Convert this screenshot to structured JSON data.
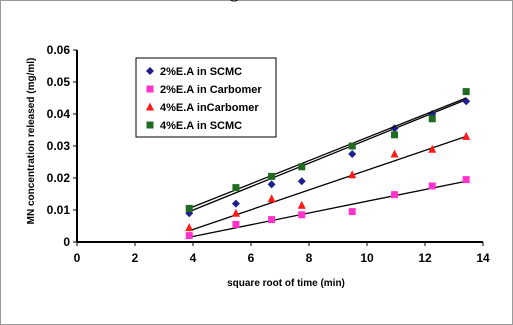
{
  "chart_data": {
    "type": "scatter",
    "title": "g",
    "xlabel": "square root of time (min)",
    "ylabel": "MN concentration released (mg/ml)",
    "xlim": [
      0,
      14
    ],
    "ylim": [
      0,
      0.06
    ],
    "xticks": [
      "0",
      "2",
      "4",
      "6",
      "8",
      "10",
      "12",
      "14"
    ],
    "yticks": [
      "0",
      "0.01",
      "0.02",
      "0.03",
      "0.04",
      "0.05",
      "0.06"
    ],
    "grid": false,
    "legend_position": "top-left",
    "series": [
      {
        "name": "2%E.A in SCMC",
        "marker": "diamond",
        "color": "#1f1f8f",
        "x": [
          3.87,
          5.48,
          6.71,
          7.75,
          9.49,
          10.95,
          12.25,
          13.42
        ],
        "y": [
          0.009,
          0.012,
          0.018,
          0.019,
          0.0275,
          0.0355,
          0.04,
          0.044
        ],
        "trendline": [
          [
            3.87,
            0.0095
          ],
          [
            13.42,
            0.0445
          ]
        ]
      },
      {
        "name": "2%E.A in Carbomer",
        "marker": "square",
        "color": "#ff33cc",
        "x": [
          3.87,
          5.48,
          6.71,
          7.75,
          9.49,
          10.95,
          12.25,
          13.42
        ],
        "y": [
          0.002,
          0.0055,
          0.007,
          0.0085,
          0.0095,
          0.0148,
          0.0175,
          0.0195
        ],
        "trendline": [
          [
            3.87,
            0.0015
          ],
          [
            13.42,
            0.019
          ]
        ]
      },
      {
        "name": "4%E.A inCarbomer",
        "marker": "triangle",
        "color": "#ff1a1a",
        "x": [
          3.87,
          5.48,
          6.71,
          7.75,
          9.49,
          10.95,
          12.25,
          13.42
        ],
        "y": [
          0.0045,
          0.009,
          0.0135,
          0.0115,
          0.021,
          0.0275,
          0.029,
          0.033
        ],
        "trendline": [
          [
            3.87,
            0.0035
          ],
          [
            13.42,
            0.033
          ]
        ]
      },
      {
        "name": "4%E.A in SCMC",
        "marker": "square",
        "color": "#1f6b1f",
        "x": [
          3.87,
          5.48,
          6.71,
          7.75,
          9.49,
          10.95,
          12.25,
          13.42
        ],
        "y": [
          0.0105,
          0.017,
          0.0205,
          0.0235,
          0.03,
          0.0335,
          0.0385,
          0.047
        ],
        "trendline": [
          [
            3.87,
            0.0105
          ],
          [
            13.42,
            0.045
          ]
        ]
      }
    ]
  }
}
